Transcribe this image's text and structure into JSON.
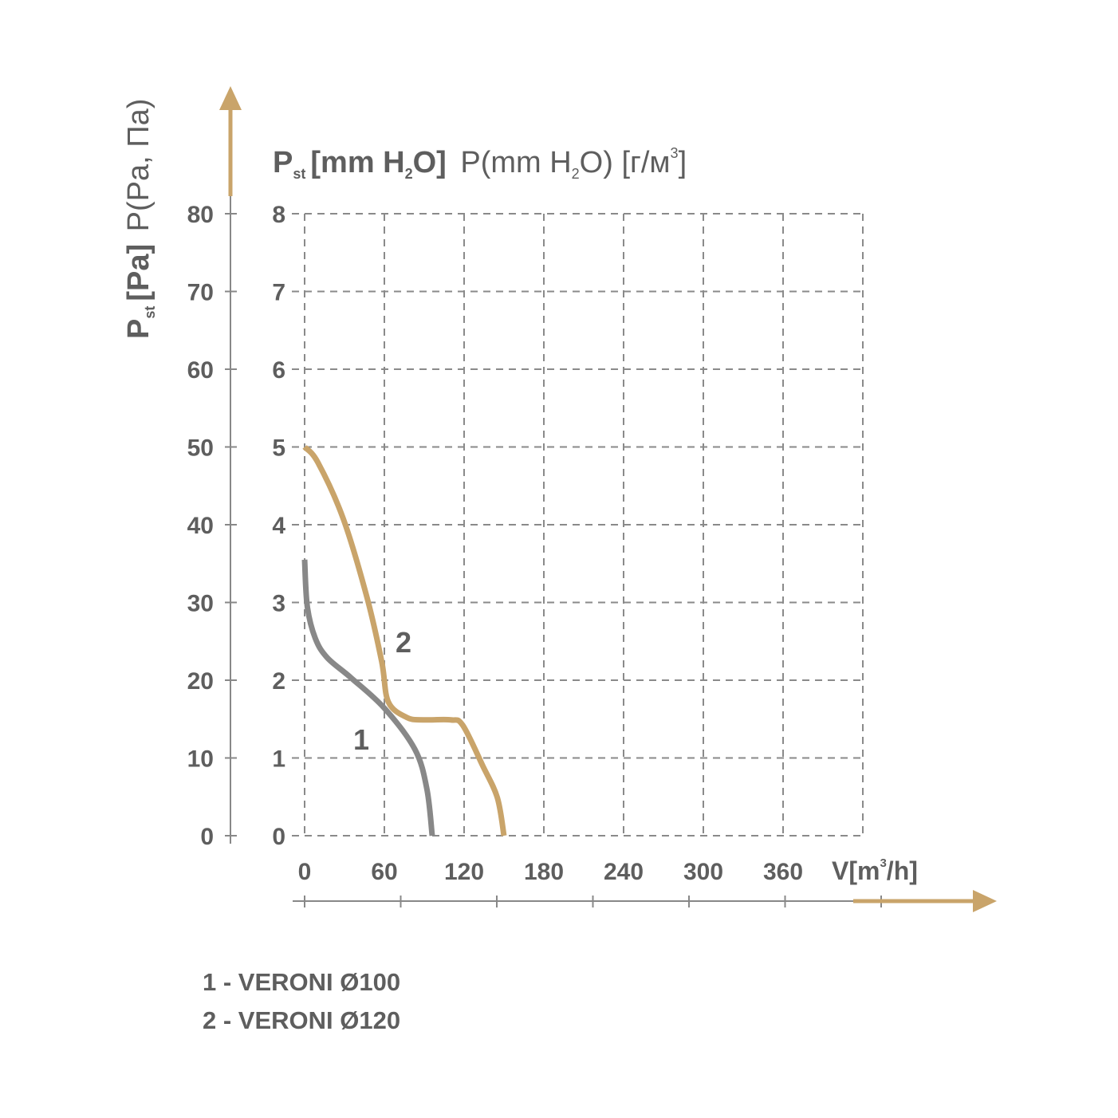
{
  "chart_data": {
    "type": "line",
    "title_bold": "P",
    "title_bold_sub": "st",
    "title_bold_rest": "[mm H",
    "title_bold_sub2": "2",
    "title_bold_end": "O]",
    "title_regular": "P(mm H",
    "title_regular_sub": "2",
    "title_regular_mid": "O) [г/м",
    "title_regular_sup": "3",
    "title_regular_end": "]",
    "ylabel_bold": "P",
    "ylabel_bold_sub": "st",
    "ylabel_bold_rest": "[Pa]",
    "ylabel_regular": "P(Pa, Па)",
    "xlabel": "V[m",
    "xlabel_sup": "3",
    "xlabel_end": "/h]",
    "xlim": [
      0,
      420
    ],
    "ylim_pa": [
      0,
      80
    ],
    "ylim_mm": [
      0,
      8
    ],
    "x_ticks": [
      "0",
      "60",
      "120",
      "180",
      "240",
      "300",
      "360"
    ],
    "y_ticks_pa": [
      "0",
      "10",
      "20",
      "30",
      "40",
      "50",
      "60",
      "70",
      "80"
    ],
    "y_ticks_mm": [
      "0",
      "1",
      "2",
      "3",
      "4",
      "5",
      "6",
      "7",
      "8"
    ],
    "grid": true,
    "series": [
      {
        "name": "1",
        "label": "1",
        "color": "#888888",
        "x": [
          0,
          2,
          8,
          17,
          35,
          60,
          83,
          92,
          96
        ],
        "y": [
          35.5,
          29.5,
          25.4,
          22.9,
          20.3,
          16.4,
          11.1,
          6.0,
          0
        ]
      },
      {
        "name": "2",
        "label": "2",
        "color": "#c9a46a",
        "x": [
          0,
          10,
          29,
          47,
          58,
          63,
          77,
          89,
          110,
          119,
          134,
          145,
          150
        ],
        "y": [
          50,
          48,
          40.8,
          30.6,
          22.4,
          17.2,
          15.2,
          14.9,
          14.9,
          14.2,
          9.0,
          4.9,
          0
        ]
      }
    ],
    "legend": [
      "1 - VERONI Ø100",
      "2 - VERONI Ø120"
    ],
    "axis_accent_color": "#c9a46a",
    "grid_color": "#8a8a8a"
  }
}
